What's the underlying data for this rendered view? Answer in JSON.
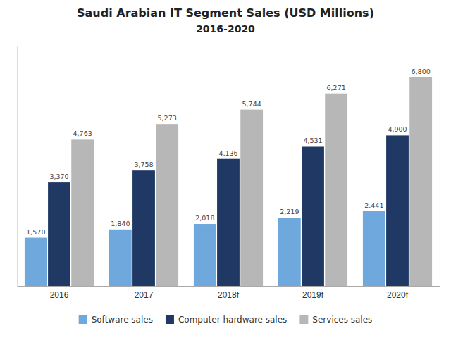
{
  "chart_data": {
    "type": "bar",
    "title": "Saudi Arabian IT Segment Sales (USD Millions)",
    "subtitle": "2016-2020",
    "categories": [
      "2016",
      "2017",
      "2018f",
      "2019f",
      "2020f"
    ],
    "series": [
      {
        "name": "Software sales",
        "color": "#6fa8dc",
        "values": [
          1570,
          1840,
          2018,
          2219,
          2441
        ],
        "value_labels": [
          "1,570",
          "1,840",
          "2,018",
          "2,219",
          "2,441"
        ]
      },
      {
        "name": "Computer hardware sales",
        "color": "#1f3864",
        "values": [
          3370,
          3758,
          4136,
          4531,
          4900
        ],
        "value_labels": [
          "3,370",
          "3,758",
          "4,136",
          "4,531",
          "4,900"
        ]
      },
      {
        "name": "Services sales",
        "color": "#b7b7b7",
        "values": [
          4763,
          5273,
          5744,
          6271,
          6800
        ],
        "value_labels": [
          "4,763",
          "5,273",
          "5,744",
          "6,271",
          "6,800"
        ]
      }
    ],
    "ylim": [
      0,
      7800
    ],
    "tick_labels": "x",
    "grid": false,
    "legend": "bottom",
    "data_labels": true
  }
}
